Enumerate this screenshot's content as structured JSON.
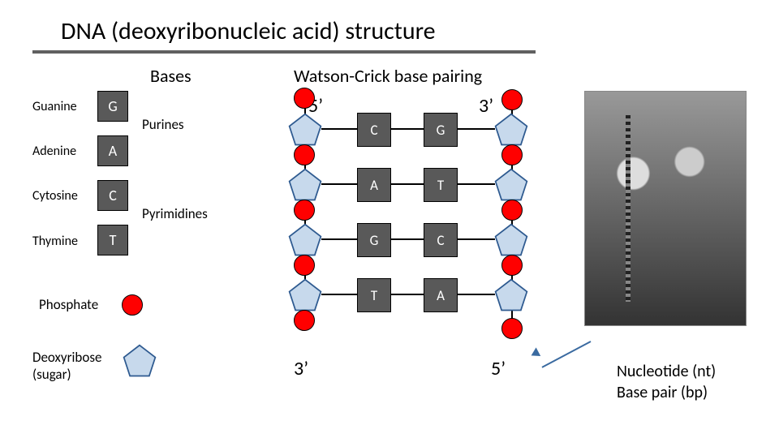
{
  "title": "DNA (deoxyribonucleic acid) structure",
  "sections": {
    "bases": "Bases",
    "wc": "Watson-Crick base pairing"
  },
  "bases": {
    "G": {
      "name": "Guanine",
      "letter": "G"
    },
    "A": {
      "name": "Adenine",
      "letter": "A"
    },
    "C": {
      "name": "Cytosine",
      "letter": "C"
    },
    "T": {
      "name": "Thymine",
      "letter": "T"
    }
  },
  "base_classes": {
    "purines": "Purines",
    "pyrimidines": "Pyrimidines"
  },
  "legend": {
    "phosphate": "Phosphate",
    "deoxyribose": "Deoxyribose (sugar)"
  },
  "ends": {
    "five": "5’",
    "three": "3’"
  },
  "pairs": [
    {
      "left": "C",
      "right": "G"
    },
    {
      "left": "A",
      "right": "T"
    },
    {
      "left": "G",
      "right": "C"
    },
    {
      "left": "T",
      "right": "A"
    }
  ],
  "bottom_terms": {
    "nt": "Nucleotide (nt)",
    "bp": "Base pair (bp)"
  },
  "style": {
    "title_fontsize": 30,
    "title_underline_color": "#606060",
    "section_fontsize": 22,
    "label_fontsize": 16,
    "base_square": {
      "size": 38,
      "fill": "#595959",
      "text_color": "#ffffff",
      "fontsize": 18,
      "stroke": "#000000"
    },
    "phosphate_circle": {
      "diameter": 26,
      "fill": "#ff0000",
      "stroke": "#000000"
    },
    "pentagon": {
      "size": 44,
      "fill": "#c7d9ec",
      "stroke": "#2e5a90",
      "stroke_width": 2
    },
    "backbone_line": {
      "color": "#000000",
      "width": 2
    },
    "arrow_color": "#3a6aa0",
    "pair_row_gap": 68,
    "background_color": "#ffffff"
  }
}
